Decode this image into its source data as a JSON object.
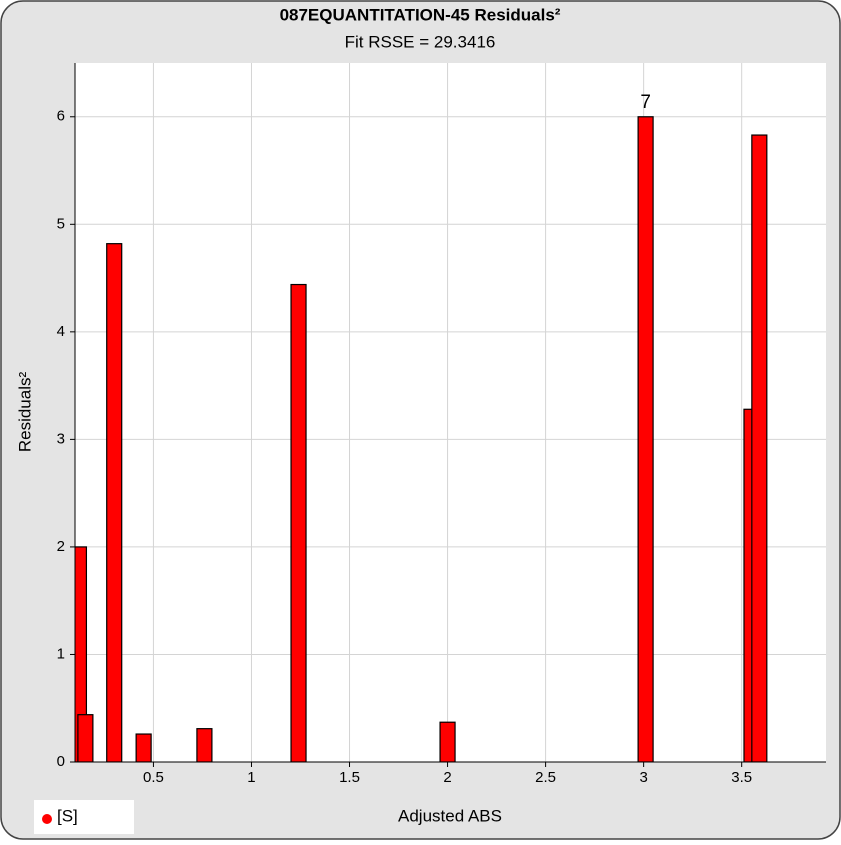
{
  "chart_data": {
    "type": "bar",
    "title": "087EQUANTITATION-45 Residuals²",
    "subtitle": "Fit RSSE = 29.3416",
    "x_label": "Adjusted ABS",
    "y_label": "Residuals²",
    "x": [
      0.12,
      0.153,
      0.3,
      0.45,
      0.76,
      1.24,
      2.0,
      3.01,
      3.55,
      3.59
    ],
    "series": [
      {
        "name": "[S]",
        "color": "#ff0000",
        "values": [
          2.0,
          0.44,
          4.82,
          0.26,
          0.31,
          4.44,
          0.37,
          6.0,
          3.28,
          5.83
        ],
        "point_labels": [
          null,
          null,
          null,
          null,
          null,
          null,
          null,
          "7",
          null,
          null
        ]
      }
    ],
    "xlim": [
      0.1,
      3.93
    ],
    "xticks": [
      0.5,
      1,
      1.5,
      2,
      2.5,
      3,
      3.5
    ],
    "ylim": [
      0,
      6.5
    ],
    "yticks": [
      0,
      1,
      2,
      3,
      4,
      5,
      6
    ],
    "grid": true,
    "legend": "bottom-left"
  }
}
